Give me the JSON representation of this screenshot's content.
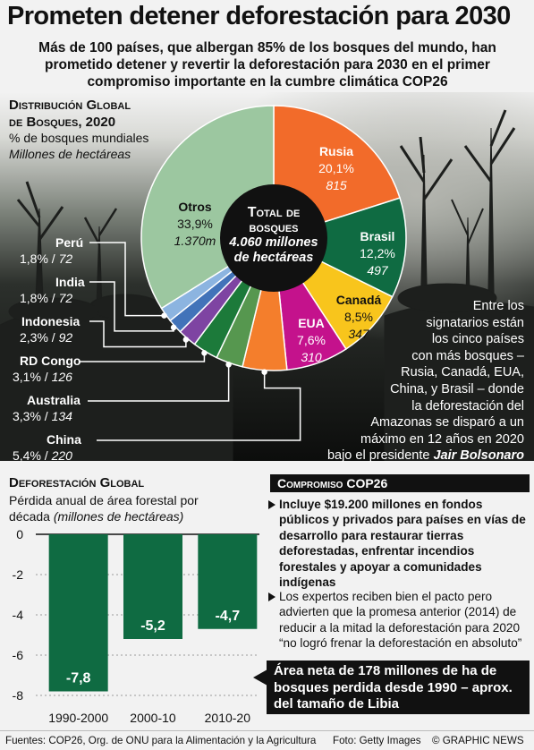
{
  "title": "Prometen detener deforestación para 2030",
  "subtitle": "Más de 100 países, que albergan 85% de los bosques del mundo, han prometido detener y revertir la deforestación para 2030 en el primer compromiso importante en la cumbre climática COP26",
  "distribution": {
    "heading_line1": "Distribución Global",
    "heading_line2": "de Bosques, 2020",
    "unit1": "% de bosques mundiales",
    "unit2": "Millones de hectáreas",
    "center_line1": "Total de",
    "center_line2": "bosques",
    "center_line3": "4.060 millones",
    "center_line4": "de hectáreas"
  },
  "side_text": {
    "line1": "Entre los",
    "line2": "signatarios están",
    "line3": "los cinco países",
    "line4": "con más bosques –",
    "line5": "Rusia, Canadá, EUA,",
    "line6": "China, y Brasil – donde",
    "line7": "la deforestación del",
    "line8": "Amazonas se disparó a un",
    "line9": "máximo en 12 años en 2020",
    "line10": "bajo el presidente",
    "name": "Jair Bolsonaro"
  },
  "bars_section": {
    "heading": "Deforestación Global",
    "sub1": "Pérdida anual de área forestal por",
    "sub2": "década",
    "sub2_italic": "(millones de hectáreas)"
  },
  "cop26": {
    "heading": "Compromiso COP26",
    "bullet1": "Incluye $19.200 millones en fondos públicos y privados para países en vías de desarrollo para restaurar tierras deforestadas, enfrentar incendios forestales y apoyar a comunidades indígenas",
    "bullet2_line1": "Los expertos reciben bien el pacto pero",
    "bullet2_line2": "advierten que la promesa anterior (2014) de",
    "bullet2_line3": "reducir a la mitad la deforestación para 2020",
    "bullet2_line4": "“no logró frenar la deforestación en absoluto”",
    "note": "Área neta de 178 millones de ha de bosques perdida desde 1990 – aprox. del tamaño de Libia"
  },
  "footer": {
    "sources": "Fuentes: COP26, Org. de ONU para la Alimentación y la Agricultura",
    "photo": "Foto: Getty Images",
    "credit": "© GRAPHIC NEWS"
  },
  "colors": {
    "background": "#f2f2f2",
    "russia": "#f26b2a",
    "brazil": "#0f6b42",
    "canada": "#f8c51c",
    "usa": "#c4128c",
    "china": "#f47e2c",
    "australia": "#56974f",
    "drcongo": "#1c7a3a",
    "indonesia": "#7e44a2",
    "india": "#4273b9",
    "peru": "#8cb4e0",
    "others": "#9cc7a0",
    "bar": "#0f6b42",
    "dark": "#111111"
  },
  "chart_data": [
    {
      "type": "pie",
      "title": "Distribución Global de Bosques, 2020",
      "unit": "% de bosques mundiales / Millones de hectáreas",
      "slices": [
        {
          "name": "Rusia",
          "pct": 20.1,
          "pct_label": "20,1%",
          "value": 815,
          "value_label": "815"
        },
        {
          "name": "Brasil",
          "pct": 12.2,
          "pct_label": "12,2%",
          "value": 497,
          "value_label": "497"
        },
        {
          "name": "Canadá",
          "pct": 8.5,
          "pct_label": "8,5%",
          "value": 347,
          "value_label": "347"
        },
        {
          "name": "EUA",
          "pct": 7.6,
          "pct_label": "7,6%",
          "value": 310,
          "value_label": "310"
        },
        {
          "name": "China",
          "pct": 5.4,
          "pct_label": "5,4%",
          "value": 220,
          "value_label": "220"
        },
        {
          "name": "Australia",
          "pct": 3.3,
          "pct_label": "3,3%",
          "value": 134,
          "value_label": "134"
        },
        {
          "name": "RD Congo",
          "pct": 3.1,
          "pct_label": "3,1%",
          "value": 126,
          "value_label": "126"
        },
        {
          "name": "Indonesia",
          "pct": 2.3,
          "pct_label": "2,3%",
          "value": 92,
          "value_label": "92"
        },
        {
          "name": "India",
          "pct": 1.8,
          "pct_label": "1,8%",
          "value": 72,
          "value_label": "72"
        },
        {
          "name": "Perú",
          "pct": 1.8,
          "pct_label": "1,8%",
          "value": 72,
          "value_label": "72"
        },
        {
          "name": "Otros",
          "pct": 33.9,
          "pct_label": "33,9%",
          "value": 1370,
          "value_label": "1.370m"
        }
      ]
    },
    {
      "type": "bar",
      "title": "Deforestación Global",
      "ylabel": "Pérdida anual de área forestal por década (millones de hectáreas)",
      "categories": [
        "1990-2000",
        "2000-10",
        "2010-20"
      ],
      "values": [
        -7.8,
        -5.2,
        -4.7
      ],
      "value_labels": [
        "-7,8",
        "-5,2",
        "-4,7"
      ],
      "ylim": [
        -8,
        0
      ],
      "yticks": [
        0,
        -2,
        -4,
        -6,
        -8
      ],
      "ytick_labels": [
        "0",
        "-2",
        "-4",
        "-6",
        "-8"
      ],
      "grid": true
    }
  ]
}
